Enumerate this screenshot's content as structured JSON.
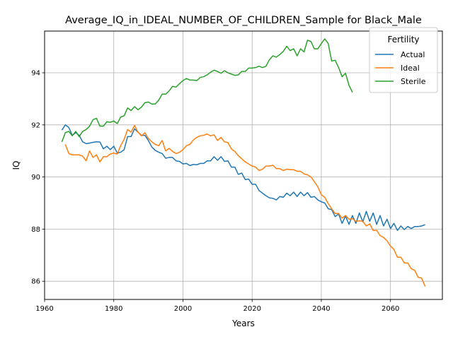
{
  "chart_data": {
    "type": "line",
    "title": "Average_IQ_in_IDEAL_NUMBER_OF_CHILDREN_Sample for Black_Male",
    "xlabel": "Years",
    "ylabel": "IQ",
    "xlim": [
      1960,
      2075
    ],
    "ylim": [
      85.3,
      95.6
    ],
    "xticks": [
      1960,
      1980,
      2000,
      2020,
      2040,
      2060
    ],
    "yticks": [
      86,
      88,
      90,
      92,
      94
    ],
    "grid": true,
    "legend": {
      "title": "Fertility",
      "position": "top-right"
    },
    "series": [
      {
        "name": "Actual",
        "color": "#1f77b4",
        "x": [
          1965,
          1966,
          1967,
          1968,
          1969,
          1970,
          1971,
          1972,
          1973,
          1974,
          1975,
          1976,
          1977,
          1978,
          1979,
          1980,
          1981,
          1982,
          1983,
          1984,
          1985,
          1986,
          1987,
          1988,
          1989,
          1990,
          1991,
          1992,
          1993,
          1994,
          1995,
          1996,
          1997,
          1998,
          1999,
          2000,
          2001,
          2002,
          2003,
          2004,
          2005,
          2006,
          2007,
          2008,
          2009,
          2010,
          2011,
          2012,
          2013,
          2014,
          2015,
          2016,
          2017,
          2018,
          2019,
          2020,
          2021,
          2022,
          2023,
          2024,
          2025,
          2026,
          2027,
          2028,
          2029,
          2030,
          2031,
          2032,
          2033,
          2034,
          2035,
          2036,
          2037,
          2038,
          2039,
          2040,
          2041,
          2042,
          2043,
          2044,
          2045,
          2046,
          2047,
          2048,
          2049,
          2050,
          2051,
          2052,
          2053,
          2054,
          2055,
          2056,
          2057,
          2058,
          2059,
          2060,
          2061,
          2062,
          2063,
          2064,
          2065,
          2066,
          2067,
          2068,
          2069,
          2070
        ],
        "values": [
          91.8,
          92.0,
          91.9,
          91.6,
          91.7,
          91.6,
          91.35,
          91.28,
          91.3,
          91.33,
          91.35,
          91.34,
          91.08,
          91.18,
          91.05,
          91.18,
          90.92,
          90.95,
          91.05,
          91.55,
          91.55,
          91.85,
          91.72,
          91.6,
          91.6,
          91.4,
          91.15,
          91.02,
          90.95,
          90.9,
          90.72,
          90.75,
          90.75,
          90.62,
          90.6,
          90.5,
          90.52,
          90.44,
          90.48,
          90.47,
          90.52,
          90.52,
          90.62,
          90.62,
          90.78,
          90.64,
          90.78,
          90.6,
          90.62,
          90.38,
          90.38,
          90.1,
          90.15,
          89.9,
          89.92,
          89.72,
          89.72,
          89.48,
          89.38,
          89.28,
          89.2,
          89.18,
          89.12,
          89.25,
          89.22,
          89.38,
          89.28,
          89.42,
          89.25,
          89.42,
          89.28,
          89.4,
          89.22,
          89.25,
          89.12,
          89.05,
          89.0,
          88.78,
          88.75,
          88.48,
          88.58,
          88.22,
          88.5,
          88.18,
          88.52,
          88.22,
          88.62,
          88.28,
          88.68,
          88.3,
          88.62,
          88.18,
          88.52,
          88.12,
          88.38,
          88.02,
          88.22,
          87.95,
          88.12,
          87.98,
          88.1,
          88.02,
          88.1,
          88.1,
          88.12,
          88.17
        ]
      },
      {
        "name": "Ideal",
        "color": "#ff7f0e",
        "x": [
          1966,
          1967,
          1968,
          1969,
          1970,
          1971,
          1972,
          1973,
          1974,
          1975,
          1976,
          1977,
          1978,
          1979,
          1980,
          1981,
          1982,
          1983,
          1984,
          1985,
          1986,
          1987,
          1988,
          1989,
          1990,
          1991,
          1992,
          1993,
          1994,
          1995,
          1996,
          1997,
          1998,
          1999,
          2000,
          2001,
          2002,
          2003,
          2004,
          2005,
          2006,
          2007,
          2008,
          2009,
          2010,
          2011,
          2012,
          2013,
          2014,
          2015,
          2016,
          2017,
          2018,
          2019,
          2020,
          2021,
          2022,
          2023,
          2024,
          2025,
          2026,
          2027,
          2028,
          2029,
          2030,
          2031,
          2032,
          2033,
          2034,
          2035,
          2036,
          2037,
          2038,
          2039,
          2040,
          2041,
          2042,
          2043,
          2044,
          2045,
          2046,
          2047,
          2048,
          2049,
          2050,
          2051,
          2052,
          2053,
          2054,
          2055,
          2056,
          2057,
          2058,
          2059,
          2060,
          2061,
          2062,
          2063,
          2064,
          2065,
          2066,
          2067,
          2068,
          2069,
          2070
        ],
        "values": [
          91.25,
          90.9,
          90.85,
          90.85,
          90.85,
          90.8,
          90.62,
          91.0,
          90.75,
          90.85,
          90.58,
          90.78,
          90.78,
          90.88,
          90.92,
          90.88,
          91.2,
          91.45,
          91.82,
          91.72,
          91.98,
          91.72,
          91.58,
          91.7,
          91.48,
          91.35,
          91.25,
          91.2,
          91.4,
          91.0,
          91.1,
          90.98,
          90.9,
          90.95,
          91.05,
          91.2,
          91.25,
          91.42,
          91.52,
          91.58,
          91.6,
          91.65,
          91.58,
          91.62,
          91.4,
          91.52,
          91.35,
          91.32,
          91.08,
          90.98,
          90.82,
          90.7,
          90.58,
          90.5,
          90.42,
          90.38,
          90.25,
          90.3,
          90.42,
          90.42,
          90.45,
          90.32,
          90.32,
          90.25,
          90.3,
          90.28,
          90.28,
          90.22,
          90.22,
          90.12,
          90.08,
          90.0,
          89.82,
          89.62,
          89.32,
          89.22,
          88.98,
          88.78,
          88.6,
          88.6,
          88.42,
          88.52,
          88.38,
          88.4,
          88.3,
          88.32,
          88.3,
          88.12,
          88.2,
          87.95,
          87.95,
          87.75,
          87.68,
          87.55,
          87.35,
          87.22,
          86.92,
          86.92,
          86.7,
          86.7,
          86.48,
          86.42,
          86.15,
          86.12,
          85.8
        ]
      },
      {
        "name": "Sterile",
        "color": "#2ca02c",
        "x": [
          1965,
          1966,
          1967,
          1968,
          1969,
          1970,
          1971,
          1972,
          1973,
          1974,
          1975,
          1976,
          1977,
          1978,
          1979,
          1980,
          1981,
          1982,
          1983,
          1984,
          1985,
          1986,
          1987,
          1988,
          1989,
          1990,
          1991,
          1992,
          1993,
          1994,
          1995,
          1996,
          1997,
          1998,
          1999,
          2000,
          2001,
          2002,
          2003,
          2004,
          2005,
          2006,
          2007,
          2008,
          2009,
          2010,
          2011,
          2012,
          2013,
          2014,
          2015,
          2016,
          2017,
          2018,
          2019,
          2020,
          2021,
          2022,
          2023,
          2024,
          2025,
          2026,
          2027,
          2028,
          2029,
          2030,
          2031,
          2032,
          2033,
          2034,
          2035,
          2036,
          2037,
          2038,
          2039,
          2040,
          2041,
          2042,
          2043,
          2044,
          2045,
          2046,
          2047,
          2048,
          2049
        ],
        "values": [
          91.35,
          91.7,
          91.75,
          91.58,
          91.75,
          91.55,
          91.75,
          91.82,
          91.95,
          92.2,
          92.25,
          91.95,
          91.95,
          92.12,
          92.1,
          92.15,
          92.05,
          92.3,
          92.35,
          92.65,
          92.55,
          92.7,
          92.58,
          92.68,
          92.85,
          92.88,
          92.8,
          92.8,
          92.95,
          93.18,
          93.18,
          93.3,
          93.48,
          93.45,
          93.58,
          93.7,
          93.78,
          93.72,
          93.72,
          93.7,
          93.82,
          93.85,
          93.92,
          94.02,
          94.1,
          94.05,
          93.98,
          94.08,
          94.0,
          93.95,
          93.9,
          93.92,
          94.05,
          94.05,
          94.18,
          94.18,
          94.2,
          94.25,
          94.2,
          94.25,
          94.5,
          94.65,
          94.6,
          94.7,
          94.82,
          95.02,
          94.85,
          94.92,
          94.65,
          94.92,
          94.8,
          95.25,
          95.2,
          94.92,
          94.92,
          95.12,
          95.3,
          95.12,
          94.45,
          94.48,
          94.2,
          93.85,
          93.98,
          93.52,
          93.25
        ]
      }
    ]
  }
}
